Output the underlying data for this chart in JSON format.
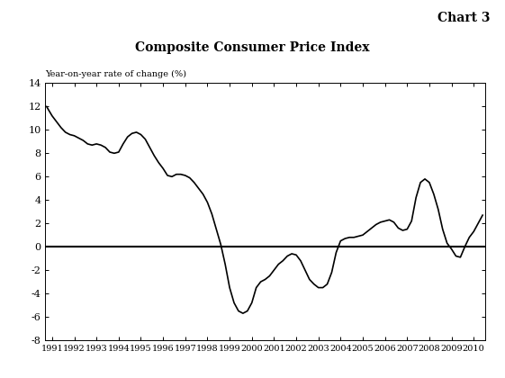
{
  "title": "Composite Consumer Price Index",
  "chart_label": "Chart 3",
  "ylabel_annotation": "Year-on-year rate of change (%)",
  "xlim": [
    1990.7,
    2010.5
  ],
  "ylim": [
    -8,
    14
  ],
  "yticks": [
    -8,
    -6,
    -4,
    -2,
    0,
    2,
    4,
    6,
    8,
    10,
    12,
    14
  ],
  "xticks": [
    1991,
    1992,
    1993,
    1994,
    1995,
    1996,
    1997,
    1998,
    1999,
    2000,
    2001,
    2002,
    2003,
    2004,
    2005,
    2006,
    2007,
    2008,
    2009,
    2010
  ],
  "line_color": "#000000",
  "background_color": "#ffffff",
  "zero_line_color": "#000000",
  "data": {
    "x": [
      1990.75,
      1991.0,
      1991.2,
      1991.4,
      1991.6,
      1991.8,
      1992.0,
      1992.2,
      1992.4,
      1992.6,
      1992.8,
      1993.0,
      1993.2,
      1993.4,
      1993.6,
      1993.8,
      1994.0,
      1994.2,
      1994.4,
      1994.6,
      1994.8,
      1995.0,
      1995.2,
      1995.4,
      1995.6,
      1995.8,
      1996.0,
      1996.2,
      1996.4,
      1996.6,
      1996.8,
      1997.0,
      1997.2,
      1997.4,
      1997.6,
      1997.8,
      1998.0,
      1998.2,
      1998.4,
      1998.6,
      1998.8,
      1999.0,
      1999.2,
      1999.4,
      1999.6,
      1999.8,
      2000.0,
      2000.2,
      2000.4,
      2000.6,
      2000.8,
      2001.0,
      2001.2,
      2001.4,
      2001.6,
      2001.8,
      2002.0,
      2002.2,
      2002.4,
      2002.6,
      2002.8,
      2003.0,
      2003.2,
      2003.4,
      2003.6,
      2003.8,
      2004.0,
      2004.2,
      2004.4,
      2004.6,
      2004.8,
      2005.0,
      2005.2,
      2005.4,
      2005.6,
      2005.8,
      2006.0,
      2006.2,
      2006.4,
      2006.6,
      2006.8,
      2007.0,
      2007.2,
      2007.4,
      2007.6,
      2007.8,
      2008.0,
      2008.2,
      2008.4,
      2008.6,
      2008.8,
      2009.0,
      2009.2,
      2009.4,
      2009.6,
      2009.8,
      2010.0,
      2010.2,
      2010.4
    ],
    "y": [
      12.0,
      11.2,
      10.7,
      10.2,
      9.8,
      9.6,
      9.5,
      9.3,
      9.1,
      8.8,
      8.7,
      8.8,
      8.7,
      8.5,
      8.1,
      8.0,
      8.1,
      8.8,
      9.4,
      9.7,
      9.8,
      9.6,
      9.2,
      8.5,
      7.8,
      7.2,
      6.7,
      6.1,
      6.0,
      6.2,
      6.2,
      6.1,
      5.9,
      5.5,
      5.0,
      4.5,
      3.8,
      2.8,
      1.5,
      0.2,
      -1.5,
      -3.5,
      -4.8,
      -5.5,
      -5.7,
      -5.5,
      -4.8,
      -3.5,
      -3.0,
      -2.8,
      -2.5,
      -2.0,
      -1.5,
      -1.2,
      -0.8,
      -0.6,
      -0.7,
      -1.2,
      -2.0,
      -2.8,
      -3.2,
      -3.5,
      -3.5,
      -3.2,
      -2.2,
      -0.5,
      0.5,
      0.7,
      0.8,
      0.8,
      0.9,
      1.0,
      1.3,
      1.6,
      1.9,
      2.1,
      2.2,
      2.3,
      2.1,
      1.6,
      1.4,
      1.5,
      2.2,
      4.2,
      5.5,
      5.8,
      5.5,
      4.5,
      3.2,
      1.5,
      0.3,
      -0.2,
      -0.8,
      -0.9,
      0.0,
      0.8,
      1.3,
      2.0,
      2.7
    ]
  }
}
